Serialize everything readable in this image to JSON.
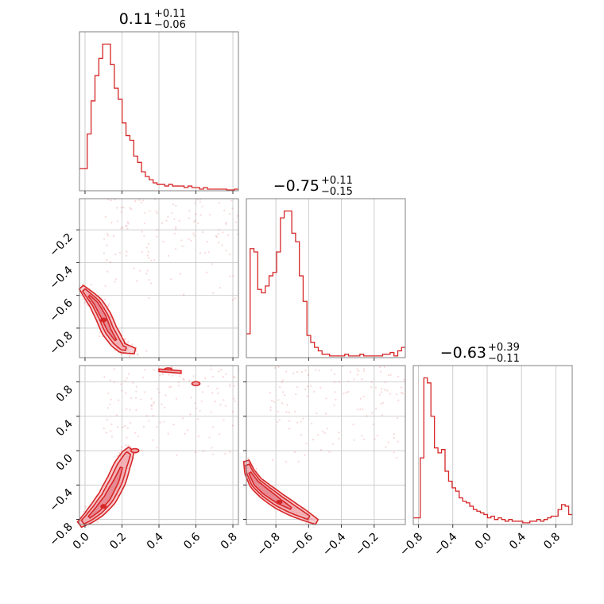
{
  "chart_data": {
    "type": "corner",
    "color": "#d62728",
    "fill_color": "#f0a6ac",
    "grid": true,
    "parameters": [
      {
        "name": "",
        "range": [
          -0.03,
          0.83
        ],
        "ticks": [
          "0.0",
          "0.2",
          "0.4",
          "0.6",
          "0.8"
        ],
        "tick_values": [
          0.0,
          0.2,
          0.4,
          0.6,
          0.8
        ]
      },
      {
        "name": "",
        "range": [
          -0.98,
          -0.01
        ],
        "ticks": [
          "−0.8",
          "−0.6",
          "−0.4",
          "−0.2"
        ],
        "tick_values": [
          -0.8,
          -0.6,
          -0.4,
          -0.2
        ]
      },
      {
        "name": "",
        "range": [
          -0.86,
          0.99
        ],
        "ticks": [
          "−0.8",
          "−0.4",
          "0.0",
          "0.4",
          "0.8"
        ],
        "tick_values": [
          -0.8,
          -0.4,
          0.0,
          0.4,
          0.8
        ]
      }
    ],
    "titles": [
      {
        "median": "0.11",
        "plus": "+0.11",
        "minus": "−0.06"
      },
      {
        "median": "−0.75",
        "plus": "+0.11",
        "minus": "−0.15"
      },
      {
        "median": "−0.63",
        "plus": "+0.39",
        "minus": "−0.11"
      }
    ],
    "histograms": [
      {
        "edges_range": [
          -0.03,
          0.83
        ],
        "counts": [
          14,
          14,
          36,
          57,
          73,
          84,
          93,
          93,
          80,
          65,
          58,
          43,
          35,
          32,
          22,
          18,
          12,
          9,
          7,
          5,
          4,
          4,
          3,
          4,
          3,
          3,
          3,
          2,
          3,
          2,
          2,
          1,
          2,
          1,
          1,
          1,
          1,
          1,
          0.5,
          0.5,
          1
        ]
      },
      {
        "edges_range": [
          -0.98,
          -0.01
        ],
        "counts": [
          14,
          64,
          62,
          40,
          38,
          42,
          48,
          50,
          62,
          82,
          86,
          86,
          73,
          68,
          48,
          33,
          13,
          9,
          6,
          4,
          2,
          2,
          1,
          1,
          1,
          1,
          2,
          1,
          1,
          1,
          2,
          1,
          1,
          1,
          1,
          1,
          2,
          2,
          3,
          1,
          4,
          6
        ]
      },
      {
        "edges_range": [
          -0.86,
          0.99
        ],
        "counts": [
          4,
          4,
          40,
          88,
          85,
          65,
          46,
          43,
          45,
          32,
          26,
          22,
          20,
          16,
          14,
          13,
          11,
          9,
          8,
          7,
          6,
          4,
          5,
          3,
          4,
          3,
          2,
          3,
          2,
          2,
          2,
          1,
          1,
          2,
          2,
          3,
          2,
          3,
          4,
          5,
          5,
          9,
          12,
          11,
          6
        ]
      }
    ],
    "contours_2d": [
      {
        "x_param": 0,
        "y_param": 1,
        "ridge": [
          [
            -0.02,
            -0.55
          ],
          [
            0.02,
            -0.6
          ],
          [
            0.06,
            -0.65
          ],
          [
            0.1,
            -0.73
          ],
          [
            0.13,
            -0.81
          ],
          [
            0.17,
            -0.88
          ],
          [
            0.2,
            -0.92
          ],
          [
            0.27,
            -0.94
          ]
        ],
        "widths": [
          0.05,
          0.03,
          0.015
        ],
        "peak": [
          0.1,
          -0.75
        ]
      },
      {
        "x_param": 0,
        "y_param": 2,
        "ridge": [
          [
            -0.03,
            -0.86
          ],
          [
            0.02,
            -0.78
          ],
          [
            0.07,
            -0.68
          ],
          [
            0.12,
            -0.55
          ],
          [
            0.17,
            -0.35
          ],
          [
            0.2,
            -0.18
          ],
          [
            0.23,
            -0.05
          ],
          [
            0.25,
            0.02
          ]
        ],
        "widths": [
          0.06,
          0.04,
          0.02
        ],
        "peak": [
          0.1,
          -0.65
        ],
        "islands": [
          [
            0.45,
            0.94
          ],
          [
            0.6,
            0.78
          ],
          [
            0.27,
            0.0
          ]
        ]
      },
      {
        "x_param": 1,
        "y_param": 2,
        "ridge": [
          [
            -0.98,
            -0.12
          ],
          [
            -0.96,
            -0.25
          ],
          [
            -0.92,
            -0.38
          ],
          [
            -0.86,
            -0.48
          ],
          [
            -0.78,
            -0.59
          ],
          [
            -0.7,
            -0.68
          ],
          [
            -0.62,
            -0.76
          ],
          [
            -0.55,
            -0.83
          ]
        ],
        "widths": [
          0.05,
          0.035,
          0.02
        ],
        "peak": [
          -0.78,
          -0.6
        ]
      }
    ]
  }
}
